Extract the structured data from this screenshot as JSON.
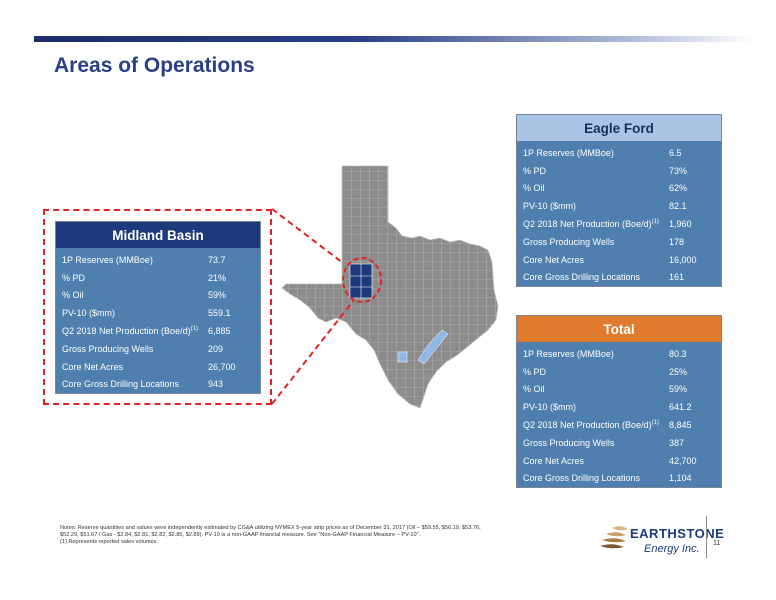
{
  "page": {
    "title": "Areas of Operations",
    "page_number": "11"
  },
  "midland": {
    "title": "Midland Basin",
    "rows": [
      {
        "label": "1P Reserves (MMBoe)",
        "value": "73.7"
      },
      {
        "label": "% PD",
        "value": "21%"
      },
      {
        "label": "% Oil",
        "value": "59%"
      },
      {
        "label": "PV-10 ($mm)",
        "value": "559.1"
      },
      {
        "label": "Q2 2018 Net Production (Boe/d)",
        "value": "6,885"
      },
      {
        "label": "Gross Producing Wells",
        "value": "209"
      },
      {
        "label": "Core Net Acres",
        "value": "26,700"
      },
      {
        "label": "Core Gross Drilling Locations",
        "value": "943"
      }
    ]
  },
  "eagle_ford": {
    "title": "Eagle Ford",
    "rows": [
      {
        "label": "1P Reserves (MMBoe)",
        "value": "6.5"
      },
      {
        "label": "% PD",
        "value": "73%"
      },
      {
        "label": "% Oil",
        "value": "62%"
      },
      {
        "label": "PV-10 ($mm)",
        "value": "82.1"
      },
      {
        "label": "Q2 2018 Net Production (Boe/d)",
        "value": "1,960"
      },
      {
        "label": "Gross Producing Wells",
        "value": "178"
      },
      {
        "label": "Core Net Acres",
        "value": "16,000"
      },
      {
        "label": "Core Gross Drilling Locations",
        "value": "161"
      }
    ]
  },
  "total": {
    "title": "Total",
    "rows": [
      {
        "label": "1P Reserves (MMBoe)",
        "value": "80.3"
      },
      {
        "label": "% PD",
        "value": "25%"
      },
      {
        "label": "% Oil",
        "value": "59%"
      },
      {
        "label": "PV-10 ($mm)",
        "value": "641.2"
      },
      {
        "label": "Q2 2018 Net Production (Boe/d)",
        "value": "8,845"
      },
      {
        "label": "Gross Producing Wells",
        "value": "387"
      },
      {
        "label": "Core Net Acres",
        "value": "42,700"
      },
      {
        "label": "Core Gross Drilling Locations",
        "value": "1,104"
      }
    ]
  },
  "footnote_marker": "(1)",
  "notes": {
    "line1": "Notes:  Reserve quantities and values were independently estimated by CG&A utilizing NYMEX 5-year strip prices as of December 31, 2017  (Oil – $59.55, $56.19, $53.76,",
    "line2": "$52.29, $51.67 / Gas - $2.84, $2.81, $2.82, $2.85,  $2.89).  PV-10 is a non-GAAP financial measure. See \"Non-GAAP Financial Measure – PV-10\".",
    "line3": "(1)     Represents reported sales volumes."
  },
  "logo": {
    "name": "EARTHSTONE",
    "tagline": "Energy Inc."
  },
  "colors": {
    "title": "#2a3f86",
    "midland_header": "#1d3a7c",
    "eagle_header": "#a9c4e4",
    "total_header": "#e07a2c",
    "table_body": "#4e7fae",
    "map_fill": "#8c8c8c",
    "highlight_dashed": "#e32424",
    "operation_counties": "#8fb8e6"
  }
}
